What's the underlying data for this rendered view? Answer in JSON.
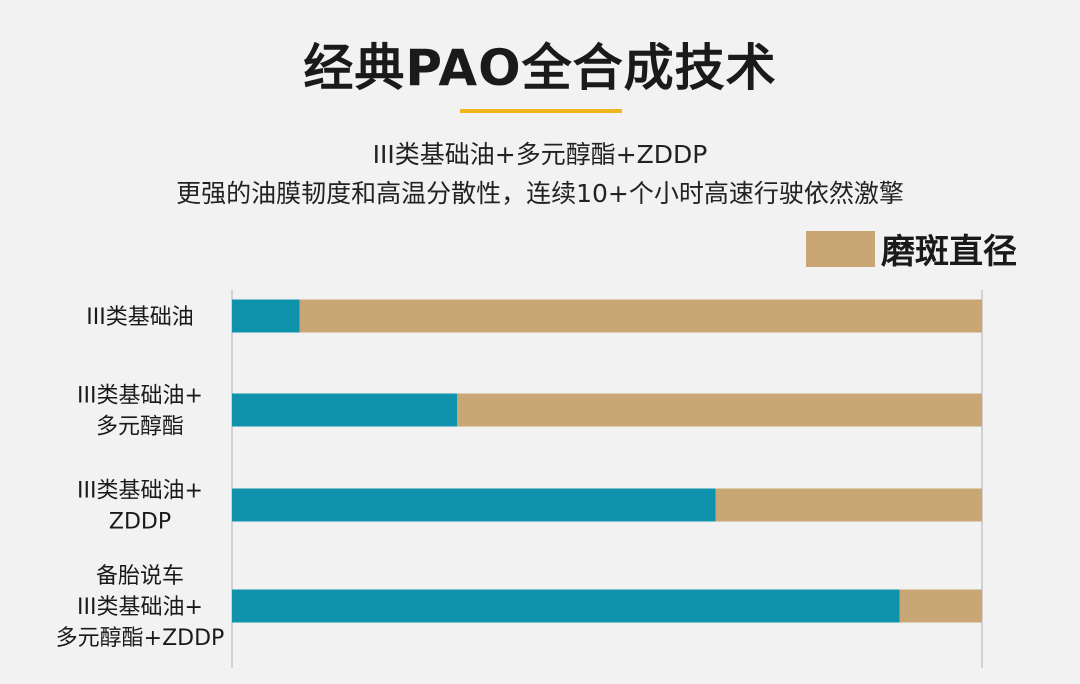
{
  "title": "经典PAO全合成技术",
  "subtitle_lines": [
    "III类基础油+多元醇酯+ZDDP",
    "更强的油膜韧度和高温分散性，连续10+个小时高速行驶依然激擎"
  ],
  "colors": {
    "background": "#f2f2f2",
    "primary_bar": "#0f93ad",
    "remainder_bar": "#c9a774",
    "accent_underline": "#f0b41e",
    "axis_line": "#c8c8c8"
  },
  "chart_data": {
    "type": "bar",
    "orientation": "horizontal",
    "stacked": true,
    "categories": [
      [
        "III类基础油"
      ],
      [
        "III类基础油+",
        "多元醇酯"
      ],
      [
        "III类基础油+",
        "ZDDP"
      ],
      [
        "备胎说车",
        "III类基础油+",
        "多元醇酯+ZDDP"
      ]
    ],
    "series": [
      {
        "name": "",
        "color": "#0f93ad",
        "values": [
          9,
          30,
          64.5,
          89
        ]
      },
      {
        "name": "磨斑直径",
        "color": "#c9a774",
        "values": [
          91,
          70,
          35.5,
          11
        ]
      }
    ],
    "xlim": [
      0,
      100
    ],
    "grid": false,
    "legend": {
      "position": "top-right",
      "entries": [
        "磨斑直径"
      ]
    }
  }
}
